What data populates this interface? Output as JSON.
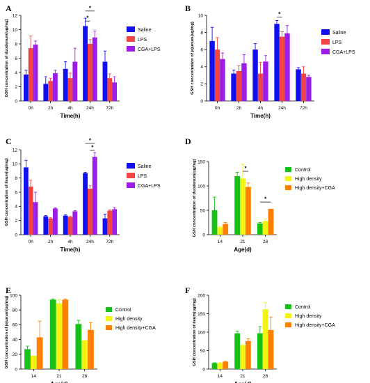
{
  "colors": {
    "saline": "#1010ee",
    "lps": "#f04545",
    "cga_lps": "#9a1ee8",
    "control": "#17c117",
    "high_density": "#f2f215",
    "high_density_cga": "#ff7f00"
  },
  "chart_data": [
    {
      "panel": "A",
      "type": "bar",
      "categories": [
        "0h",
        "2h",
        "4h",
        "24h",
        "72h"
      ],
      "xlabel": "Time(h)",
      "ylabel": "GSH concentration of duodenum(ug/mg)",
      "ylim": [
        0,
        12
      ],
      "yticks": [
        0,
        2,
        4,
        6,
        8,
        10,
        12
      ],
      "legend": "right",
      "series": [
        {
          "name": "Saline",
          "color": "saline",
          "values": [
            3.7,
            2.4,
            4.5,
            10.5,
            5.5
          ],
          "errors": [
            0.6,
            1.0,
            1.0,
            1.1,
            1.5
          ]
        },
        {
          "name": "LPS",
          "color": "lps",
          "values": [
            7.4,
            2.8,
            3.2,
            8.0,
            3.2
          ],
          "errors": [
            1.7,
            0.4,
            0.7,
            0.6,
            0.6
          ]
        },
        {
          "name": "CGA+LPS",
          "color": "cga_lps",
          "values": [
            7.9,
            3.9,
            5.5,
            8.9,
            2.6
          ],
          "errors": [
            0.5,
            0.4,
            1.9,
            0.9,
            0.8
          ]
        }
      ],
      "significance": [
        {
          "category": 3,
          "from": 0,
          "to": 1,
          "label": "*",
          "y": 11.2
        },
        {
          "category": 3,
          "from": 0,
          "to": 2,
          "label": "*",
          "y": 12.6
        }
      ]
    },
    {
      "panel": "B",
      "type": "bar",
      "categories": [
        "0h",
        "2h",
        "4h",
        "24h",
        "72h"
      ],
      "xlabel": "Time(h)",
      "ylabel": "GSH concentration of jejunum(ug/mg)",
      "ylim": [
        0,
        10
      ],
      "yticks": [
        0,
        2,
        4,
        6,
        8,
        10
      ],
      "legend": "right",
      "series": [
        {
          "name": "Saline",
          "color": "saline",
          "values": [
            7.0,
            3.2,
            6.0,
            9.0,
            3.7
          ],
          "errors": [
            1.6,
            0.4,
            0.7,
            0.4,
            0.2
          ]
        },
        {
          "name": "LPS",
          "color": "lps",
          "values": [
            6.0,
            3.5,
            3.2,
            7.5,
            3.2
          ],
          "errors": [
            1.4,
            0.6,
            1.3,
            0.6,
            0.8
          ]
        },
        {
          "name": "CGA+LPS",
          "color": "cga_lps",
          "values": [
            4.9,
            4.4,
            4.6,
            7.9,
            2.8
          ],
          "errors": [
            0.7,
            1.0,
            0.7,
            0.9,
            0.2
          ]
        }
      ],
      "significance": [
        {
          "category": 3,
          "from": 0,
          "to": 1,
          "label": "*",
          "y": 9.8
        }
      ]
    },
    {
      "panel": "C",
      "type": "bar",
      "categories": [
        "0h",
        "2h",
        "4h",
        "24h",
        "72h"
      ],
      "xlabel": "Time(h)",
      "ylabel": "GSH concentration of ileum(ug/mg)",
      "ylim": [
        0,
        12
      ],
      "yticks": [
        0,
        2,
        4,
        6,
        8,
        10,
        12
      ],
      "legend": "right",
      "series": [
        {
          "name": "Saline",
          "color": "saline",
          "values": [
            9.5,
            2.6,
            2.7,
            8.7,
            2.3
          ],
          "errors": [
            1.0,
            0.1,
            0.1,
            0.1,
            0.6
          ]
        },
        {
          "name": "LPS",
          "color": "lps",
          "values": [
            6.8,
            2.3,
            2.5,
            6.5,
            3.4
          ],
          "errors": [
            0.9,
            0.1,
            0.1,
            0.4,
            0.1
          ]
        },
        {
          "name": "CGA+LPS",
          "color": "cga_lps",
          "values": [
            4.6,
            3.7,
            3.3,
            11.0,
            3.6
          ],
          "errors": [
            1.4,
            0.1,
            0.1,
            0.6,
            0.2
          ]
        }
      ],
      "significance": [
        {
          "category": 3,
          "from": 1,
          "to": 2,
          "label": "*",
          "y": 11.9
        },
        {
          "category": 3,
          "from": 0,
          "to": 2,
          "label": "*",
          "y": 12.9
        }
      ]
    },
    {
      "panel": "D",
      "type": "bar",
      "categories": [
        "14",
        "21",
        "28"
      ],
      "xlabel": "Age(d)",
      "ylabel": "GSH concentration of duodenum(ug/mg)",
      "ylim": [
        0,
        150
      ],
      "yticks": [
        0,
        50,
        100,
        150
      ],
      "legend": "right",
      "series": [
        {
          "name": "Control",
          "color": "control",
          "values": [
            50,
            120,
            23
          ],
          "errors": [
            27,
            8,
            2
          ]
        },
        {
          "name": "High density",
          "color": "high_density",
          "values": [
            15,
            115,
            28
          ],
          "errors": [
            2,
            30,
            4
          ]
        },
        {
          "name": "High density+CGA",
          "color": "high_density_cga",
          "values": [
            22,
            98,
            53
          ],
          "errors": [
            3,
            8,
            0
          ]
        }
      ],
      "significance": [
        {
          "category": 1,
          "from": 1,
          "to": 2,
          "label": "*",
          "y": 130
        },
        {
          "category": 2,
          "from": 0,
          "to": 2,
          "label": "*",
          "y": 67
        }
      ]
    },
    {
      "panel": "E",
      "type": "bar",
      "categories": [
        "14",
        "21",
        "28"
      ],
      "xlabel": "Age(d)",
      "ylabel": "GSH concentration of jejunum(ug/mg)",
      "ylim": [
        0,
        100
      ],
      "yticks": [
        0,
        20,
        40,
        60,
        80,
        100
      ],
      "legend": "right",
      "series": [
        {
          "name": "Control",
          "color": "control",
          "values": [
            27,
            94,
            61
          ],
          "errors": [
            4,
            1,
            5
          ]
        },
        {
          "name": "High density",
          "color": "high_density",
          "values": [
            18,
            89,
            39
          ],
          "errors": [
            0,
            5,
            0
          ]
        },
        {
          "name": "High density+CGA",
          "color": "high_density_cga",
          "values": [
            43,
            94,
            53
          ],
          "errors": [
            22,
            1,
            10
          ]
        }
      ],
      "significance": []
    },
    {
      "panel": "F",
      "type": "bar",
      "categories": [
        "14",
        "21",
        "28"
      ],
      "xlabel": "Age(d)",
      "ylabel": "GSH concentration of ileum(ug/mg)",
      "ylim": [
        0,
        200
      ],
      "yticks": [
        0,
        50,
        100,
        150,
        200
      ],
      "legend": "right",
      "series": [
        {
          "name": "Control",
          "color": "control",
          "values": [
            16,
            97,
            97
          ],
          "errors": [
            1,
            6,
            18
          ]
        },
        {
          "name": "High density",
          "color": "high_density",
          "values": [
            16,
            64,
            162
          ],
          "errors": [
            1,
            2,
            18
          ]
        },
        {
          "name": "High density+CGA",
          "color": "high_density_cga",
          "values": [
            20,
            76,
            106
          ],
          "errors": [
            1,
            6,
            35
          ]
        }
      ],
      "significance": []
    }
  ]
}
